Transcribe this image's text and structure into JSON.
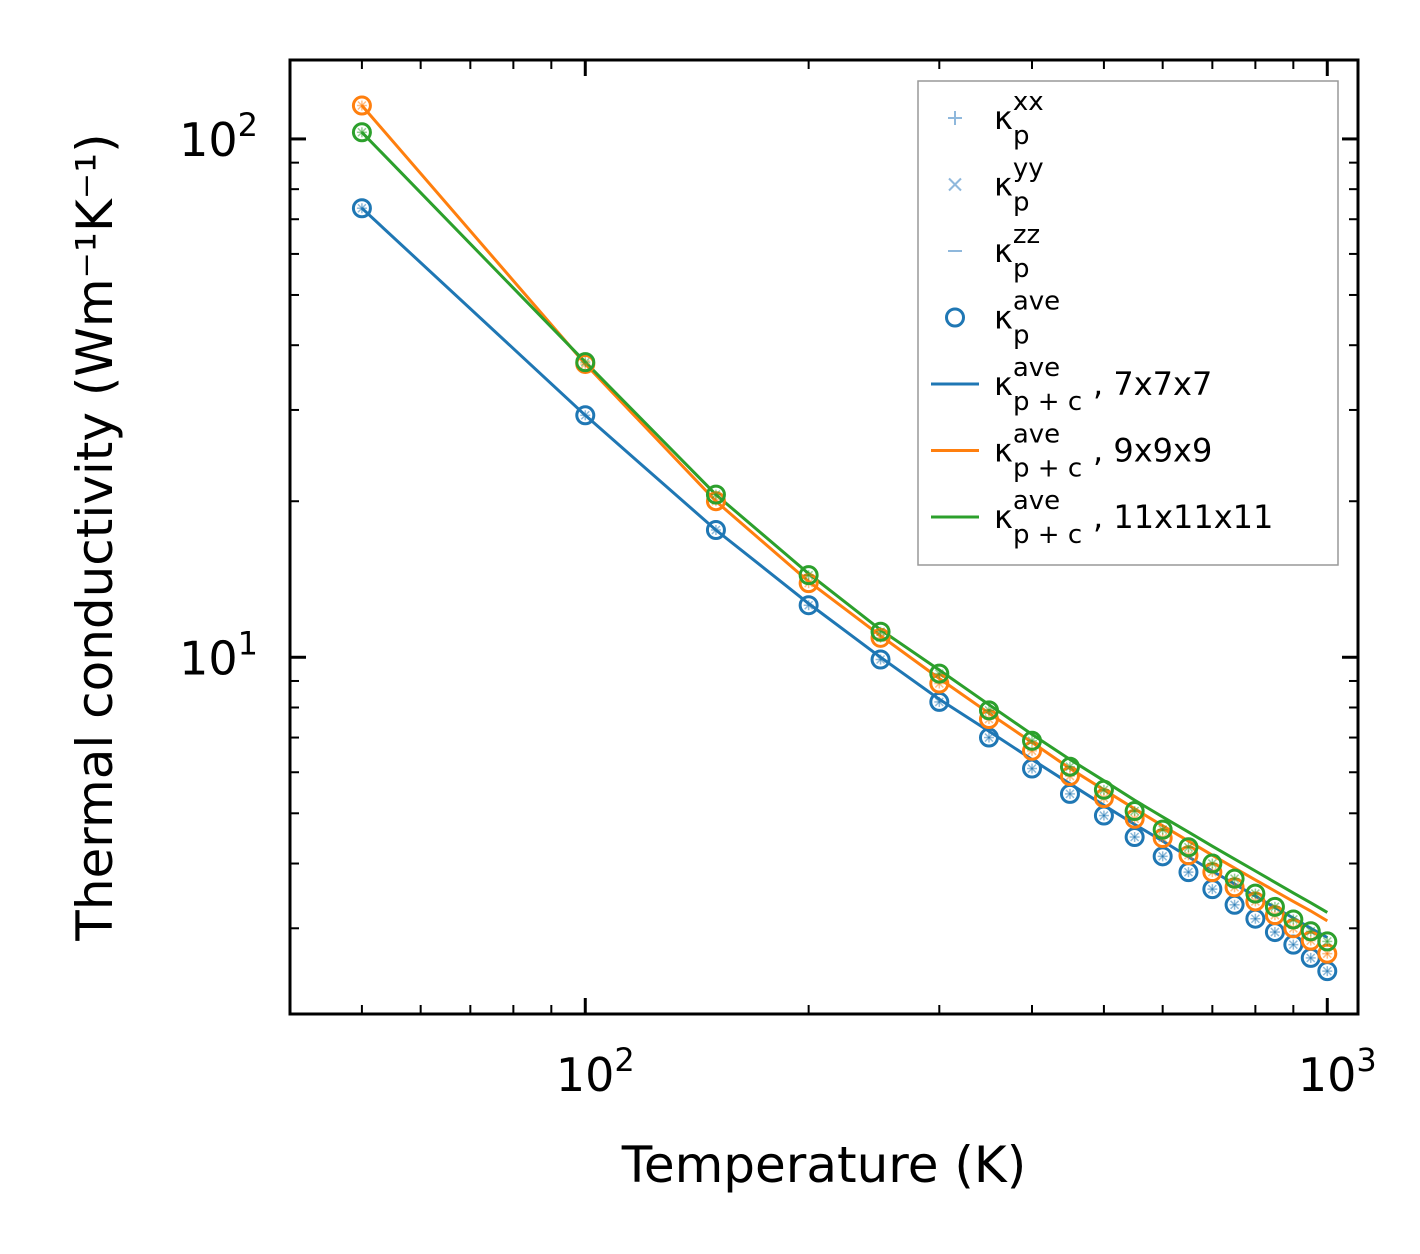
{
  "chart_data": {
    "type": "line",
    "xscale": "log",
    "yscale": "log",
    "xlabel": "Temperature (K)",
    "ylabel": "Thermal conductivity (Wm⁻¹K⁻¹)",
    "xlim": [
      40,
      1100
    ],
    "ylim": [
      2.05,
      142
    ],
    "x_ticks": [
      {
        "value": 100,
        "base": "10",
        "exp": "2"
      },
      {
        "value": 1000,
        "base": "10",
        "exp": "3"
      }
    ],
    "y_ticks": [
      {
        "value": 10,
        "base": "10",
        "exp": "1"
      },
      {
        "value": 100,
        "base": "10",
        "exp": "2"
      }
    ],
    "legend_position": "top-right",
    "legend": [
      {
        "symbol": "+",
        "base": "κ",
        "sub": "p",
        "sup": "xx",
        "suffix": ""
      },
      {
        "symbol": "×",
        "base": "κ",
        "sub": "p",
        "sup": "yy",
        "suffix": ""
      },
      {
        "symbol": "–",
        "base": "κ",
        "sub": "p",
        "sup": "zz",
        "suffix": ""
      },
      {
        "symbol": "o",
        "base": "κ",
        "sub": "p",
        "sup": "ave",
        "suffix": ""
      },
      {
        "symbol": "line",
        "color": "#1f77b4",
        "base": "κ",
        "sub": "p + c",
        "sup": "ave",
        "suffix": ", 7x7x7"
      },
      {
        "symbol": "line",
        "color": "#ff7f0e",
        "base": "κ",
        "sub": "p + c",
        "sup": "ave",
        "suffix": ", 9x9x9"
      },
      {
        "symbol": "line",
        "color": "#2ca02c",
        "base": "κ",
        "sub": "p + c",
        "sup": "ave",
        "suffix": ", 11x11x11"
      }
    ],
    "x": [
      50,
      100,
      150,
      200,
      250,
      300,
      350,
      400,
      450,
      500,
      550,
      600,
      650,
      700,
      750,
      800,
      850,
      900,
      950,
      1000
    ],
    "series": [
      {
        "name": "7x7x7",
        "color": "#1f77b4",
        "kappa_p_ave": [
          73.5,
          29.3,
          17.6,
          12.6,
          9.9,
          8.2,
          7.0,
          6.1,
          5.45,
          4.95,
          4.5,
          4.13,
          3.85,
          3.57,
          3.33,
          3.13,
          2.95,
          2.79,
          2.63,
          2.48
        ],
        "kappa_p_plus_c": [
          73.5,
          29.3,
          17.6,
          12.7,
          10.0,
          8.3,
          7.2,
          6.35,
          5.7,
          5.18,
          4.76,
          4.42,
          4.12,
          3.87,
          3.65,
          3.46,
          3.29,
          3.14,
          3.0,
          2.88
        ]
      },
      {
        "name": "9x9x9",
        "color": "#ff7f0e",
        "kappa_p_ave": [
          116,
          36.8,
          20.0,
          13.9,
          10.9,
          8.9,
          7.6,
          6.6,
          5.9,
          5.35,
          4.88,
          4.48,
          4.15,
          3.85,
          3.6,
          3.38,
          3.18,
          3.0,
          2.84,
          2.68
        ],
        "kappa_p_plus_c": [
          116,
          36.8,
          20.0,
          14.0,
          11.0,
          9.1,
          7.8,
          6.85,
          6.1,
          5.55,
          5.1,
          4.73,
          4.42,
          4.15,
          3.92,
          3.72,
          3.54,
          3.38,
          3.24,
          3.1
        ]
      },
      {
        "name": "11x11x11",
        "color": "#2ca02c",
        "kappa_p_ave": [
          103,
          37.1,
          20.6,
          14.4,
          11.2,
          9.3,
          7.9,
          6.9,
          6.15,
          5.55,
          5.05,
          4.65,
          4.3,
          4.0,
          3.74,
          3.5,
          3.3,
          3.12,
          2.96,
          2.83
        ],
        "kappa_p_plus_c": [
          103,
          37.1,
          20.6,
          14.5,
          11.3,
          9.45,
          8.1,
          7.1,
          6.35,
          5.78,
          5.3,
          4.92,
          4.6,
          4.32,
          4.08,
          3.87,
          3.68,
          3.51,
          3.36,
          3.22
        ]
      }
    ]
  }
}
